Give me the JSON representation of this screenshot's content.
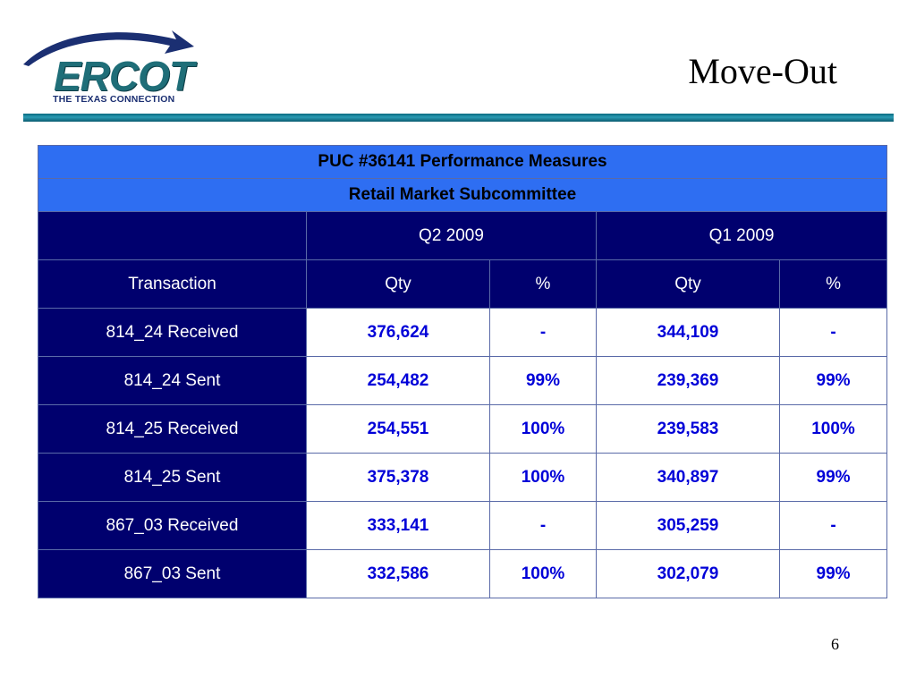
{
  "logo": {
    "word": "ERCOT",
    "tagline": "THE TEXAS CONNECTION"
  },
  "slide": {
    "title": "Move-Out",
    "page_number": "6"
  },
  "table": {
    "header_line1": "PUC #36141 Performance Measures",
    "header_line2": "Retail Market Subcommittee",
    "periods": [
      "Q2 2009",
      "Q1 2009"
    ],
    "col_transaction": "Transaction",
    "col_qty": "Qty",
    "col_pct": "%",
    "rows": [
      {
        "transaction": "814_24 Received",
        "q2_qty": "376,624",
        "q2_pct": "-",
        "q1_qty": "344,109",
        "q1_pct": "-"
      },
      {
        "transaction": "814_24 Sent",
        "q2_qty": "254,482",
        "q2_pct": "99%",
        "q1_qty": "239,369",
        "q1_pct": "99%"
      },
      {
        "transaction": "814_25 Received",
        "q2_qty": "254,551",
        "q2_pct": "100%",
        "q1_qty": "239,583",
        "q1_pct": "100%"
      },
      {
        "transaction": "814_25 Sent",
        "q2_qty": "375,378",
        "q2_pct": "100%",
        "q1_qty": "340,897",
        "q1_pct": "99%"
      },
      {
        "transaction": "867_03 Received",
        "q2_qty": "333,141",
        "q2_pct": "-",
        "q1_qty": "305,259",
        "q1_pct": "-"
      },
      {
        "transaction": "867_03 Sent",
        "q2_qty": "332,586",
        "q2_pct": "100%",
        "q1_qty": "302,079",
        "q1_pct": "99%"
      }
    ]
  },
  "colors": {
    "header_blue": "#2e6ef2",
    "navy": "#00006e",
    "value_blue": "#0000d8",
    "logo_teal": "#1f6e78"
  }
}
